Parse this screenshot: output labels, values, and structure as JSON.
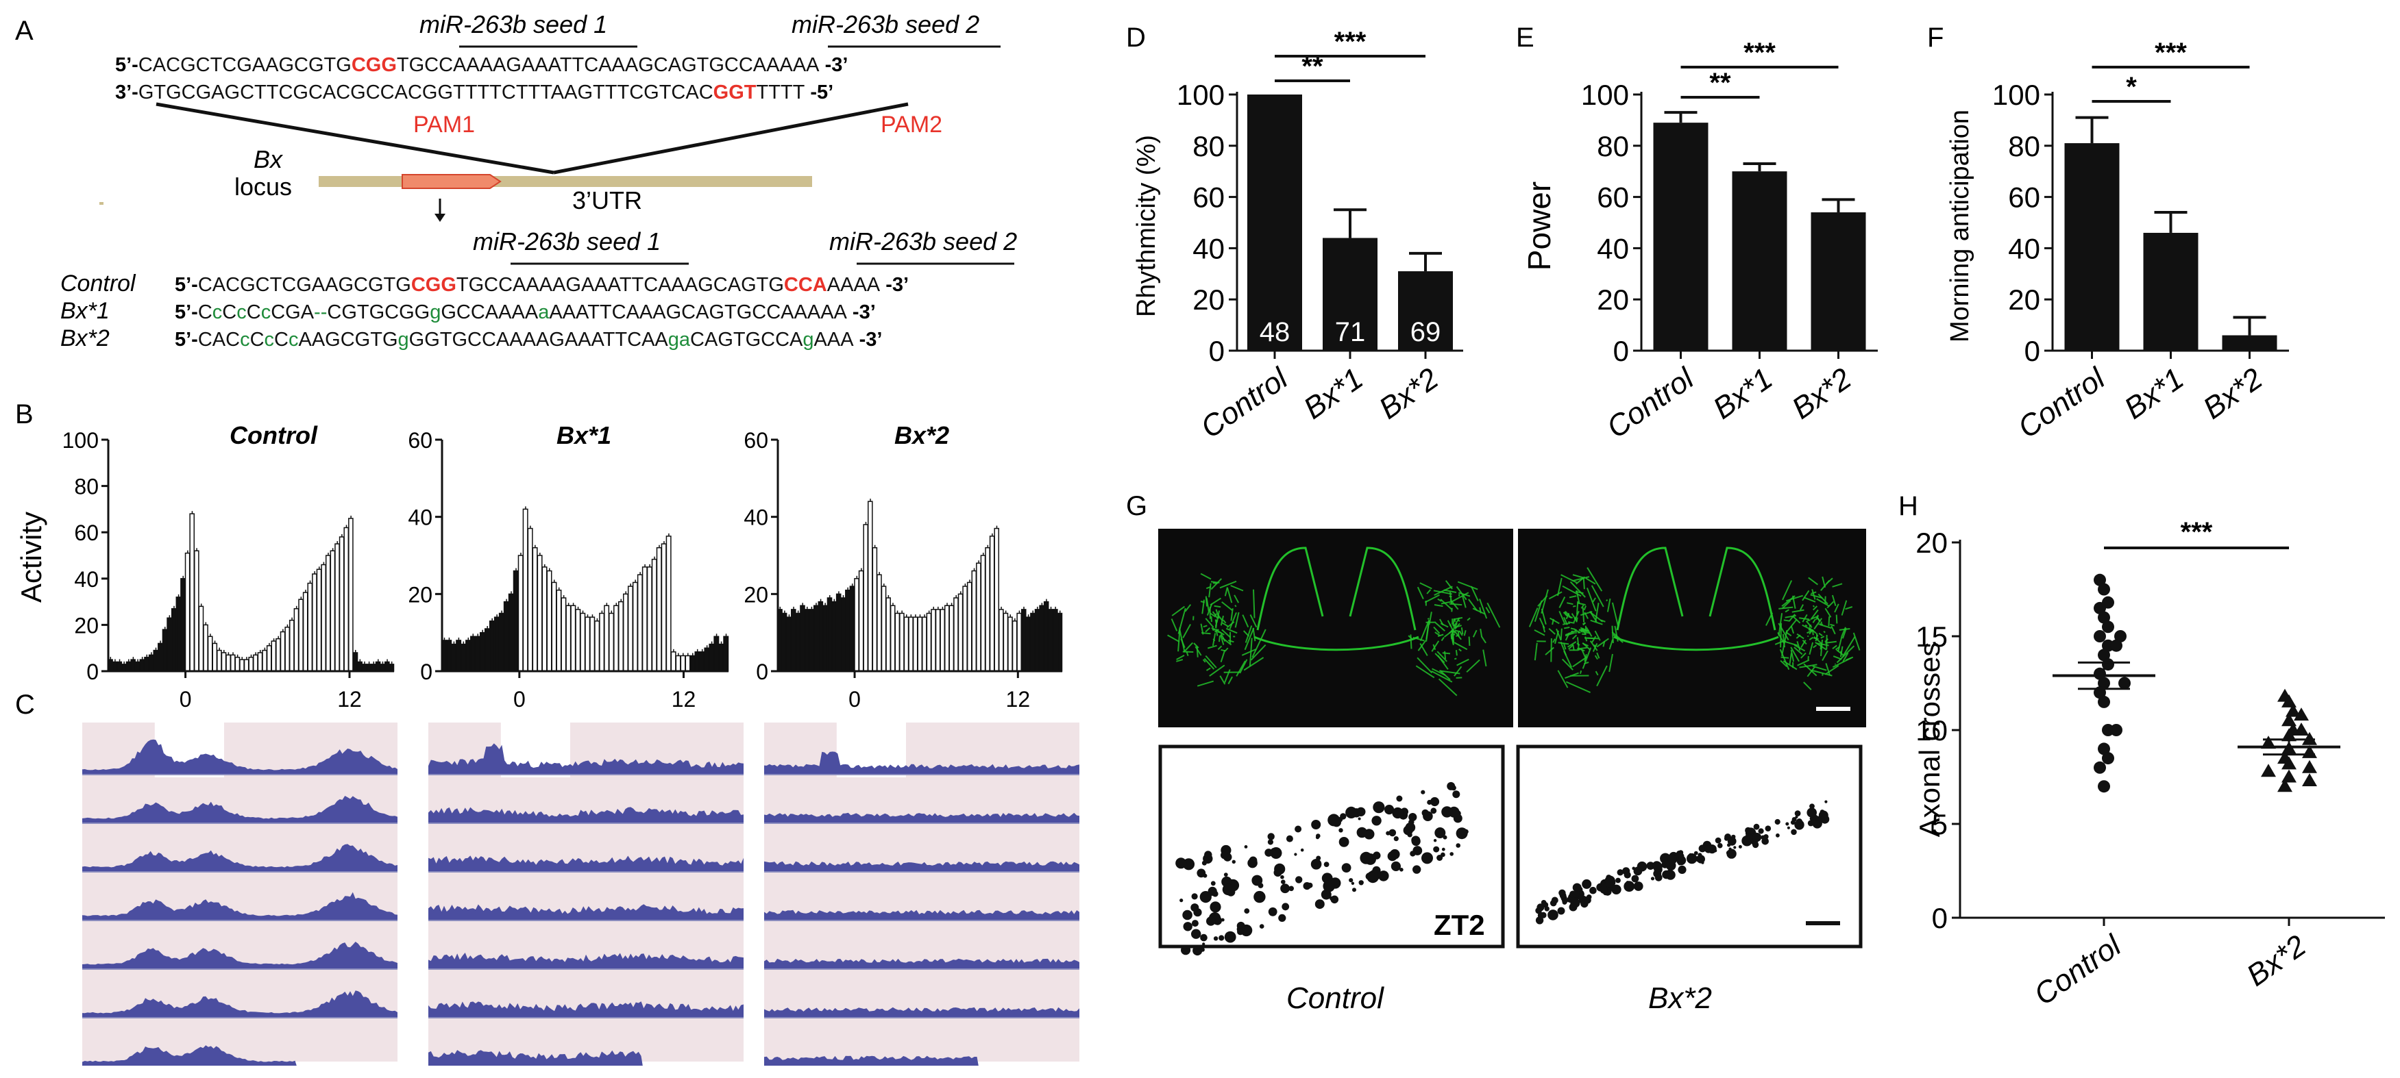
{
  "panel_letters": [
    "A",
    "B",
    "C",
    "D",
    "E",
    "F",
    "G",
    "H"
  ],
  "colors": {
    "red": "#e8332a",
    "green": "#1e8c3a",
    "blue": "#4b4ea0",
    "tan": "#cdbf8f",
    "black": "#111111",
    "actogram_bg": "#f0e3e6",
    "gfp": "#22c02a"
  },
  "panel_a": {
    "seed1": "miR-263b seed 1",
    "seed2": "miR-263b seed 2",
    "top_strand": {
      "prefix": "5’-",
      "segments": [
        {
          "t": "CACGCTCGAAGCGTG",
          "c": "black"
        },
        {
          "t": "CGG",
          "c": "red"
        },
        {
          "t": "TGCCAAAAGAAATTCAAAGCAGTGCCAAAAA",
          "c": "black"
        }
      ],
      "suffix": "-3’"
    },
    "bottom_strand": {
      "prefix": "3’-",
      "segments": [
        {
          "t": "GTGCGAGCTTCGCACGCCACGGTTTTCTTTAAGTTTCGTCAC",
          "c": "black"
        },
        {
          "t": "GGT",
          "c": "red"
        },
        {
          "t": "TTTT",
          "c": "black"
        }
      ],
      "suffix": "-5’"
    },
    "pam1": "PAM1",
    "pam2": "PAM2",
    "locus_name": "Bx",
    "locus_word": "locus",
    "utr": "3’UTR",
    "seq_rows": [
      {
        "label": "Control",
        "prefix": "5’-",
        "segments": [
          {
            "t": "CACGCTCGAAGCGTG",
            "c": "black"
          },
          {
            "t": "CGG",
            "c": "red"
          },
          {
            "t": "TGCCAAAAGAAATTCAAAGCAGTG",
            "c": "black"
          },
          {
            "t": "CCA",
            "c": "red"
          },
          {
            "t": "AAAA",
            "c": "black"
          }
        ],
        "suffix": "-3’"
      },
      {
        "label": "Bx*1",
        "prefix": "5’-",
        "segments": [
          {
            "t": "C",
            "c": "black"
          },
          {
            "t": "c",
            "c": "green"
          },
          {
            "t": "C",
            "c": "black"
          },
          {
            "t": "c",
            "c": "green"
          },
          {
            "t": "C",
            "c": "black"
          },
          {
            "t": "c",
            "c": "green"
          },
          {
            "t": "CGA",
            "c": "black"
          },
          {
            "t": "--",
            "c": "green"
          },
          {
            "t": "CGTGCGG",
            "c": "black"
          },
          {
            "t": "g",
            "c": "green"
          },
          {
            "t": "GCCAAAA",
            "c": "black"
          },
          {
            "t": "a",
            "c": "green"
          },
          {
            "t": "AAATTCAAAGCAGTGCCAAAAA",
            "c": "black"
          }
        ],
        "suffix": "-3’"
      },
      {
        "label": "Bx*2",
        "prefix": "5’-",
        "segments": [
          {
            "t": "CAC",
            "c": "black"
          },
          {
            "t": "c",
            "c": "green"
          },
          {
            "t": "C",
            "c": "black"
          },
          {
            "t": "c",
            "c": "green"
          },
          {
            "t": "C",
            "c": "black"
          },
          {
            "t": "c",
            "c": "green"
          },
          {
            "t": "AAGCGTG",
            "c": "black"
          },
          {
            "t": "g",
            "c": "green"
          },
          {
            "t": "GGTGCCAAAAGAAATTCAA",
            "c": "black"
          },
          {
            "t": "ga",
            "c": "green"
          },
          {
            "t": "CAGTGCCA",
            "c": "black"
          },
          {
            "t": "g",
            "c": "green"
          },
          {
            "t": "AAA",
            "c": "black"
          }
        ],
        "suffix": "-3’"
      }
    ]
  },
  "panel_b": {
    "ylabel": "Activity",
    "xticks": [
      "0",
      "12"
    ],
    "plots": [
      {
        "title": "Control",
        "ymax": 100,
        "yticks": [
          "100",
          "80",
          "60",
          "40",
          "20",
          "0"
        ],
        "bars": [
          5,
          4,
          4,
          3,
          4,
          5,
          4,
          5,
          6,
          7,
          9,
          12,
          18,
          23,
          27,
          32,
          40,
          51,
          68,
          52,
          28,
          20,
          15,
          12,
          9,
          8,
          7,
          7,
          6,
          5,
          5,
          6,
          7,
          8,
          9,
          11,
          13,
          14,
          17,
          19,
          22,
          27,
          31,
          34,
          38,
          42,
          44,
          46,
          50,
          52,
          55,
          58,
          62,
          66,
          8,
          4,
          3,
          3,
          3,
          4,
          3,
          4,
          3
        ]
      },
      {
        "title": "Bx*1",
        "ymax": 60,
        "yticks": [
          "60",
          "40",
          "20",
          "0"
        ],
        "bars": [
          8,
          8,
          7,
          8,
          7,
          8,
          9,
          9,
          10,
          11,
          13,
          14,
          15,
          18,
          20,
          26,
          30,
          42,
          37,
          32,
          30,
          27,
          26,
          23,
          21,
          19,
          17,
          17,
          16,
          15,
          14,
          14,
          13,
          15,
          17,
          15,
          17,
          18,
          20,
          22,
          23,
          25,
          27,
          27,
          29,
          32,
          33,
          35,
          5,
          4,
          4,
          4,
          4,
          5,
          5,
          6,
          7,
          9,
          7,
          9
        ]
      },
      {
        "title": "Bx*2",
        "ymax": 60,
        "yticks": [
          "60",
          "40",
          "20",
          "0"
        ],
        "bars": [
          16,
          15,
          14,
          16,
          15,
          17,
          16,
          16,
          17,
          18,
          17,
          19,
          18,
          20,
          19,
          21,
          22,
          24,
          26,
          38,
          44,
          32,
          25,
          22,
          19,
          17,
          15,
          15,
          14,
          14,
          14,
          14,
          14,
          15,
          16,
          16,
          16,
          17,
          17,
          19,
          20,
          22,
          23,
          26,
          28,
          30,
          32,
          35,
          37,
          16,
          15,
          14,
          13,
          15,
          16,
          14,
          15,
          16,
          17,
          18,
          16,
          16,
          15
        ]
      }
    ]
  },
  "panel_d": {
    "type": "bar",
    "ylabel": "Rhythmicity (%)",
    "categories": [
      "Control",
      "Bx*1",
      "Bx*2"
    ],
    "values": [
      100,
      44,
      31
    ],
    "errors": [
      0,
      11,
      7
    ],
    "n_labels": [
      "48",
      "71",
      "69"
    ],
    "yticks": [
      "100",
      "80",
      "60",
      "40",
      "20",
      "0"
    ],
    "ylim": [
      0,
      100
    ],
    "sig": [
      "**",
      "***"
    ]
  },
  "panel_e": {
    "type": "bar",
    "ylabel": "Power",
    "categories": [
      "Control",
      "Bx*1",
      "Bx*2"
    ],
    "values": [
      89,
      70,
      54
    ],
    "errors": [
      4,
      3,
      5
    ],
    "yticks": [
      "100",
      "80",
      "60",
      "40",
      "20",
      "0"
    ],
    "ylim": [
      0,
      100
    ],
    "sig": [
      "**",
      "***"
    ]
  },
  "panel_f": {
    "type": "bar",
    "ylabel": "Morning anticipation",
    "categories": [
      "Control",
      "Bx*1",
      "Bx*2"
    ],
    "values": [
      81,
      46,
      6
    ],
    "errors": [
      10,
      8,
      7
    ],
    "yticks": [
      "100",
      "80",
      "60",
      "40",
      "20",
      "0"
    ],
    "ylim": [
      0,
      100
    ],
    "sig": [
      "*",
      "***"
    ]
  },
  "panel_g": {
    "zt": "ZT2",
    "labels": [
      "Control",
      "Bx*2"
    ]
  },
  "panel_h": {
    "type": "scatter",
    "ylabel": "Axonal crosses",
    "categories": [
      "Control",
      "Bx*2"
    ],
    "yticks": [
      "20",
      "15",
      "10",
      "5",
      "0"
    ],
    "ylim": [
      0,
      20
    ],
    "sig": "***",
    "groups": [
      {
        "name": "Control",
        "marker": "circle",
        "mean": 12.9,
        "sem": 0.7,
        "points": [
          18,
          17.5,
          16.8,
          16.5,
          16,
          15.5,
          15,
          15,
          14.5,
          14.5,
          14,
          13.5,
          13,
          12.5,
          12.5,
          12,
          11.5,
          10,
          10,
          9,
          8.5,
          8,
          7
        ]
      },
      {
        "name": "Bx*2",
        "marker": "triangle",
        "mean": 9.1,
        "sem": 0.4,
        "points": [
          11.8,
          11.5,
          11,
          10.8,
          10.5,
          10,
          10,
          9.7,
          9.5,
          9.3,
          9,
          8.8,
          8.5,
          8.2,
          8,
          7.8,
          7.5,
          7.3,
          7
        ]
      }
    ]
  }
}
